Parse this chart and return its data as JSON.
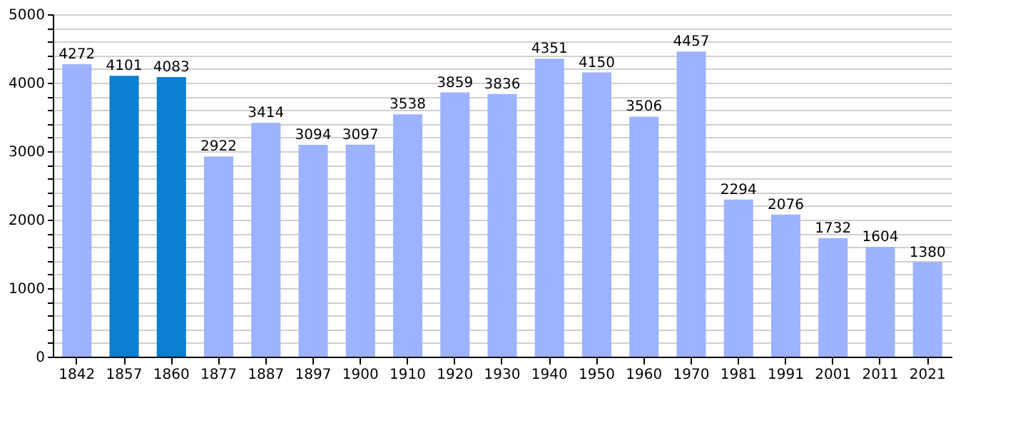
{
  "chart_data": {
    "type": "bar",
    "categories": [
      "1842",
      "1857",
      "1860",
      "1877",
      "1887",
      "1897",
      "1900",
      "1910",
      "1920",
      "1930",
      "1940",
      "1950",
      "1960",
      "1970",
      "1981",
      "1991",
      "2001",
      "2011",
      "2021"
    ],
    "values": [
      4272,
      4101,
      4083,
      2922,
      3414,
      3094,
      3097,
      3538,
      3859,
      3836,
      4351,
      4150,
      3506,
      4457,
      2294,
      2076,
      1732,
      1604,
      1380
    ],
    "colors": [
      "#9db3ff",
      "#0b7fd0",
      "#0b7fd0",
      "#9db3ff",
      "#9db3ff",
      "#9db3ff",
      "#9db3ff",
      "#9db3ff",
      "#9db3ff",
      "#9db3ff",
      "#9db3ff",
      "#9db3ff",
      "#9db3ff",
      "#9db3ff",
      "#9db3ff",
      "#9db3ff",
      "#9db3ff",
      "#9db3ff",
      "#9db3ff"
    ],
    "ylim": [
      0,
      5000
    ],
    "yticks": [
      0,
      {
        "value": 200,
        "label": null
      },
      {
        "value": 400,
        "label": null
      },
      {
        "value": 600,
        "label": null
      },
      {
        "value": 800,
        "label": null
      },
      1000,
      {
        "value": 1200,
        "label": null
      },
      {
        "value": 1400,
        "label": null
      },
      {
        "value": 1600,
        "label": null
      },
      {
        "value": 1800,
        "label": null
      },
      2000,
      {
        "value": 2200,
        "label": null
      },
      {
        "value": 2400,
        "label": null
      },
      {
        "value": 2600,
        "label": null
      },
      {
        "value": 2800,
        "label": null
      },
      3000,
      {
        "value": 3200,
        "label": null
      },
      {
        "value": 3400,
        "label": null
      },
      {
        "value": 3600,
        "label": null
      },
      {
        "value": 3800,
        "label": null
      },
      4000,
      {
        "value": 4200,
        "label": null
      },
      {
        "value": 4400,
        "label": null
      },
      {
        "value": 4600,
        "label": null
      },
      {
        "value": 4800,
        "label": null
      },
      5000
    ],
    "grid": "y",
    "data_labels": true
  }
}
